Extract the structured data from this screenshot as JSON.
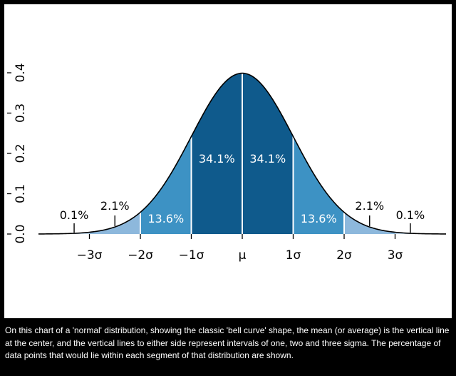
{
  "chart_data": {
    "type": "area",
    "title": "",
    "xlabel": "",
    "ylabel": "",
    "mean": 0,
    "sd": 1,
    "xlim": [
      -4,
      4
    ],
    "ylim": [
      0,
      0.4
    ],
    "yticks": [
      {
        "value": 0.0,
        "label": "0.0"
      },
      {
        "value": 0.1,
        "label": "0.1"
      },
      {
        "value": 0.2,
        "label": "0.2"
      },
      {
        "value": 0.3,
        "label": "0.3"
      },
      {
        "value": 0.4,
        "label": "0.4"
      }
    ],
    "xticks": [
      {
        "value": -3,
        "label": "−3σ"
      },
      {
        "value": -2,
        "label": "−2σ"
      },
      {
        "value": -1,
        "label": "−1σ"
      },
      {
        "value": 0,
        "label": "μ"
      },
      {
        "value": 1,
        "label": "1σ"
      },
      {
        "value": 2,
        "label": "2σ"
      },
      {
        "value": 3,
        "label": "3σ"
      }
    ],
    "segments": [
      {
        "from": -3,
        "to": -2,
        "label": "2.1%",
        "color": "#8db8dc"
      },
      {
        "from": -2,
        "to": -1,
        "label": "13.6%",
        "color": "#3d92c4"
      },
      {
        "from": -1,
        "to": 0,
        "label": "34.1%",
        "color": "#0f5a8c"
      },
      {
        "from": 0,
        "to": 1,
        "label": "34.1%",
        "color": "#0f5a8c"
      },
      {
        "from": 1,
        "to": 2,
        "label": "13.6%",
        "color": "#3d92c4"
      },
      {
        "from": 2,
        "to": 3,
        "label": "2.1%",
        "color": "#8db8dc"
      }
    ],
    "tail_labels": [
      {
        "side": "left",
        "label": "0.1%"
      },
      {
        "side": "right",
        "label": "0.1%"
      }
    ],
    "tail_color": "#c4dcef",
    "curve_color": "#000000"
  },
  "caption": "On this chart of a 'normal' distribution, showing the classic 'bell curve' shape, the mean (or average) is the vertical line at the center, and the vertical lines to either side represent intervals of one, two and three sigma. The percentage of data points that would lie within each segment of that distribution are shown."
}
